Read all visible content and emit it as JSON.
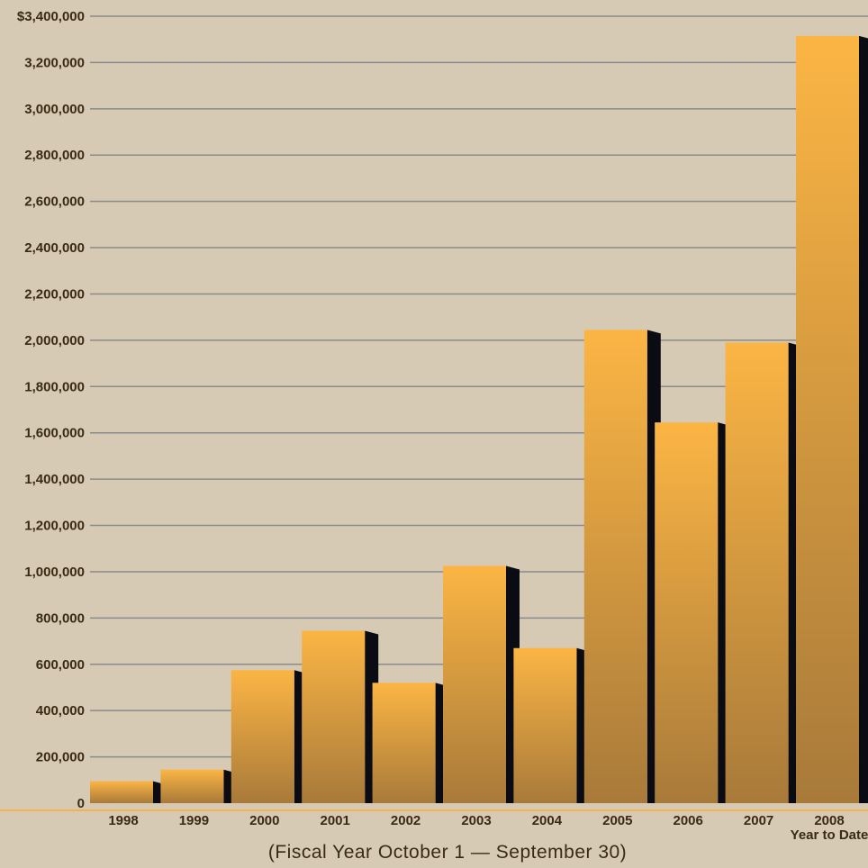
{
  "chart_data": {
    "type": "bar",
    "categories": [
      "1998",
      "1999",
      "2000",
      "2001",
      "2002",
      "2003",
      "2004",
      "2005",
      "2006",
      "2007",
      "2008"
    ],
    "category_sublabels": [
      "",
      "",
      "",
      "",
      "",
      "",
      "",
      "",
      "",
      "",
      "Year to Date"
    ],
    "values": [
      95000,
      145000,
      575000,
      745000,
      520000,
      1025000,
      670000,
      2045000,
      1645000,
      1990000,
      3315000
    ],
    "ylim": [
      0,
      3400000
    ],
    "yticks": [
      0,
      200000,
      400000,
      600000,
      800000,
      1000000,
      1200000,
      1400000,
      1600000,
      1800000,
      2000000,
      2200000,
      2400000,
      2600000,
      2800000,
      3000000,
      3200000,
      3400000
    ],
    "ytick_labels": [
      "0",
      "200,000",
      "400,000",
      "600,000",
      "800,000",
      "1,000,000",
      "1,200,000",
      "1,400,000",
      "1,600,000",
      "1,800,000",
      "2,000,000",
      "2,200,000",
      "2,400,000",
      "2,600,000",
      "2,800,000",
      "3,000,000",
      "3,200,000",
      "$3,400,000"
    ],
    "grid": true,
    "colors": {
      "background": "#d6cab5",
      "bar_top": "#fbb544",
      "bar_bottom": "#a87a3a",
      "bar_shadow": "#0b0b14",
      "grid": "#8a8a8a",
      "baseline": "#f0b44a",
      "text": "#3a2a12"
    }
  },
  "footnote": "(Fiscal Year October 1 — September 30)"
}
